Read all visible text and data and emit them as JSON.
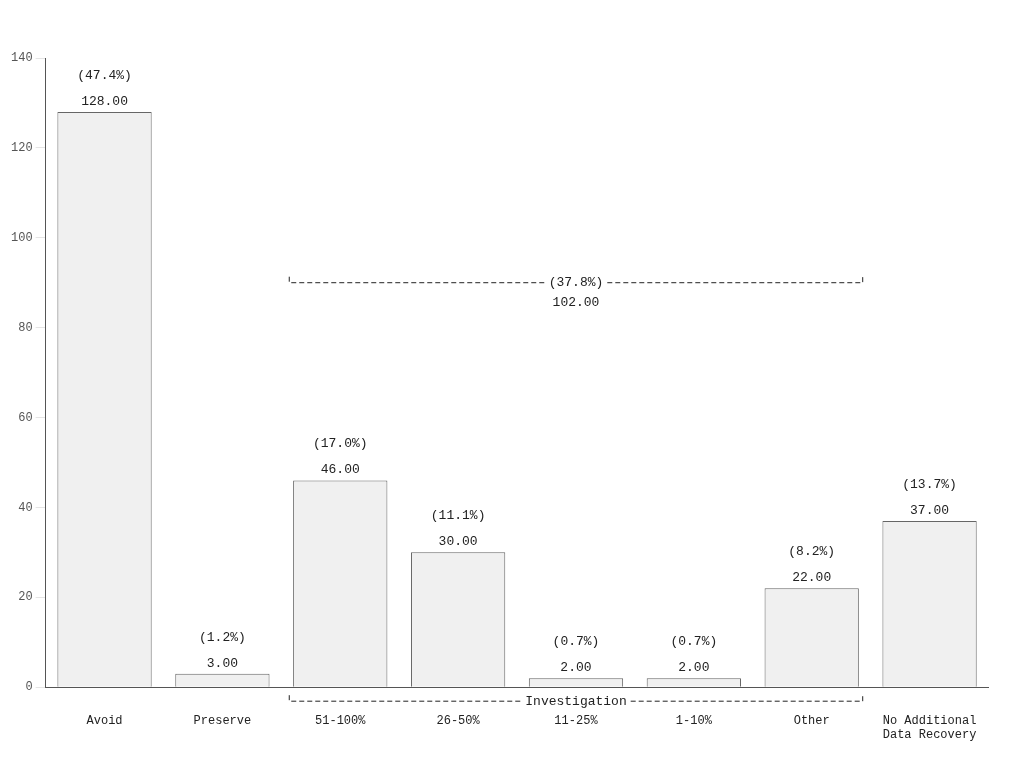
{
  "chart_data": {
    "type": "bar",
    "categories": [
      "Avoid",
      "Preserve",
      "51-100%",
      "26-50%",
      "11-25%",
      "1-10%",
      "Other",
      "No Additional Data Recovery"
    ],
    "values": [
      128,
      3,
      46,
      30,
      2,
      2,
      22,
      37
    ],
    "color": "#f0f0f0",
    "value_labels": [
      "128.00",
      "3.00",
      "46.00",
      "30.00",
      "2.00",
      "2.00",
      "22.00",
      "37.00"
    ],
    "ylim": [
      0,
      140
    ],
    "yticks": [
      0,
      20,
      40,
      60,
      80,
      100,
      120,
      140
    ],
    "grid": false,
    "legend": false,
    "annotations": [
      {
        "text": "(47.4%)",
        "x": "Avoid",
        "y": 128
      },
      {
        "text": "(1.2%)",
        "x": "Preserve",
        "y": 3
      },
      {
        "text": "(17.0%)",
        "x": "51-100%",
        "y": 46
      },
      {
        "text": "(11.1%)",
        "x": "26-50%",
        "y": 30
      },
      {
        "text": "(0.7%)",
        "x": "11-25%",
        "y": 2
      },
      {
        "text": "(0.7%)",
        "x": "1-10%",
        "y": 2
      },
      {
        "text": "(8.2%)",
        "x": "Other",
        "y": 22
      },
      {
        "text": "(13.7%)",
        "x": "No Additional Data Recovery",
        "y": 37
      },
      "Investigation",
      "(37.8%)",
      "102.00"
    ]
  }
}
